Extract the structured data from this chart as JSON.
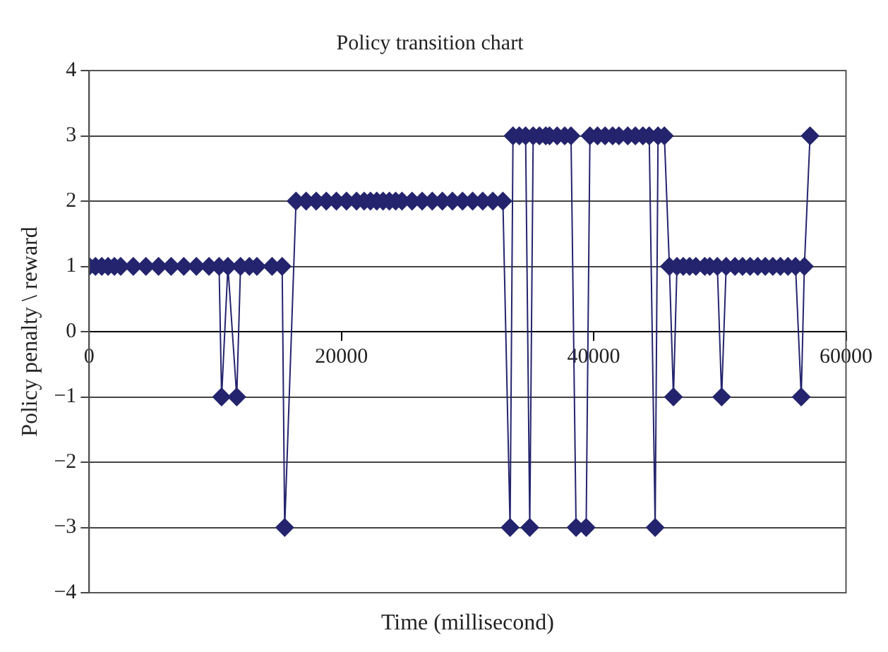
{
  "chart_data": {
    "type": "line",
    "title": "Policy transition chart",
    "xlabel": "Time (millisecond)",
    "ylabel": "Policy penalty \\ reward",
    "x": [
      0,
      500,
      1000,
      1500,
      2000,
      2500,
      3500,
      4500,
      5500,
      6500,
      7500,
      8500,
      9500,
      10300,
      10500,
      11000,
      11700,
      12000,
      12700,
      13300,
      14500,
      15300,
      15500,
      16400,
      17200,
      18000,
      18800,
      19600,
      20400,
      21200,
      21800,
      22300,
      22800,
      23300,
      23800,
      24300,
      24800,
      25600,
      26400,
      27200,
      28000,
      28800,
      29600,
      30400,
      31200,
      32000,
      32800,
      33370,
      33600,
      34100,
      34600,
      34930,
      35200,
      35700,
      36200,
      36500,
      37100,
      37700,
      38200,
      38600,
      39400,
      39700,
      40300,
      40900,
      41500,
      42000,
      42700,
      43300,
      43900,
      44400,
      44870,
      45100,
      45600,
      46000,
      46320,
      46600,
      47100,
      47600,
      48100,
      48800,
      49200,
      49800,
      50140,
      50500,
      51200,
      51800,
      52400,
      53000,
      53600,
      54200,
      54800,
      55400,
      56000,
      56450,
      56700,
      57150
    ],
    "series": [
      {
        "color": "#24246e",
        "values": [
          1,
          1,
          1,
          1,
          1,
          1,
          1,
          1,
          1,
          1,
          1,
          1,
          1,
          1,
          -1,
          1,
          -1,
          1,
          1,
          1,
          1,
          1,
          -3,
          2,
          2,
          2,
          2,
          2,
          2,
          2,
          2,
          2,
          2,
          2,
          2,
          2,
          2,
          2,
          2,
          2,
          2,
          2,
          2,
          2,
          2,
          2,
          2,
          -3,
          3,
          3,
          3,
          -3,
          3,
          3,
          3,
          3,
          3,
          3,
          3,
          -3,
          -3,
          3,
          3,
          3,
          3,
          3,
          3,
          3,
          3,
          3,
          -3,
          3,
          3,
          1,
          -1,
          1,
          1,
          1,
          1,
          1,
          1,
          1,
          -1,
          1,
          1,
          1,
          1,
          1,
          1,
          1,
          1,
          1,
          1,
          -1,
          1,
          3
        ]
      }
    ],
    "xlim": [
      0,
      60000
    ],
    "xticks": [
      0,
      20000,
      40000,
      60000
    ],
    "ylim": [
      -4,
      4
    ],
    "yticks": [
      -4,
      -3,
      -2,
      -1,
      0,
      1,
      2,
      3,
      4
    ],
    "grid": "y",
    "legend": false,
    "marker": "diamond",
    "line_style": "solid"
  }
}
